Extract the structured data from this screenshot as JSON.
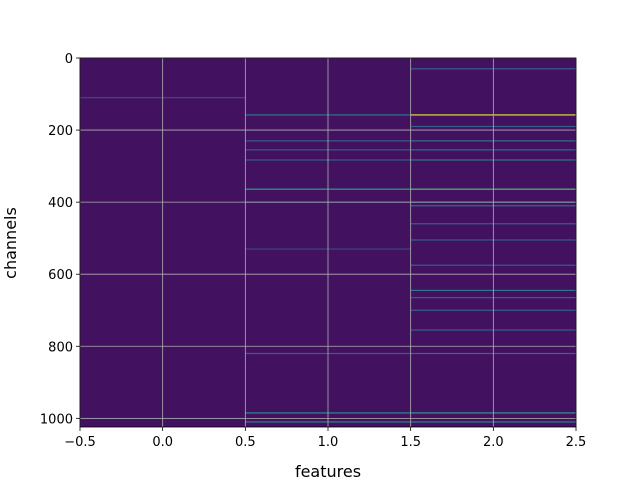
{
  "chart_data": {
    "type": "heatmap",
    "title": "",
    "xlabel": "features",
    "ylabel": "channels",
    "xlim": [
      -0.5,
      2.5
    ],
    "ylim": [
      1024,
      0
    ],
    "y_inverted": true,
    "grid": true,
    "colormap": "viridis",
    "x_ticks": [
      -0.5,
      0.0,
      0.5,
      1.0,
      1.5,
      2.0,
      2.5
    ],
    "x_tick_labels": [
      "−0.5",
      "0.0",
      "0.5",
      "1.0",
      "1.5",
      "2.0",
      "2.5"
    ],
    "y_ticks": [
      0,
      200,
      400,
      600,
      800,
      1000
    ],
    "y_tick_labels": [
      "0",
      "200",
      "400",
      "600",
      "800",
      "1000"
    ],
    "columns": [
      0,
      1,
      2
    ],
    "rows": 1024,
    "background_value": 0.05,
    "highlights": [
      {
        "feature": 0,
        "channel": 110,
        "value": 0.22
      },
      {
        "feature": 0,
        "channel": 1000,
        "value": 0.18
      },
      {
        "feature": 1,
        "channel": 158,
        "value": 0.4
      },
      {
        "feature": 1,
        "channel": 230,
        "value": 0.3
      },
      {
        "feature": 1,
        "channel": 255,
        "value": 0.28
      },
      {
        "feature": 1,
        "channel": 283,
        "value": 0.3
      },
      {
        "feature": 1,
        "channel": 364,
        "value": 0.55
      },
      {
        "feature": 1,
        "channel": 400,
        "value": 0.3
      },
      {
        "feature": 1,
        "channel": 530,
        "value": 0.2
      },
      {
        "feature": 1,
        "channel": 820,
        "value": 0.3
      },
      {
        "feature": 1,
        "channel": 985,
        "value": 0.5
      },
      {
        "feature": 1,
        "channel": 1010,
        "value": 0.45
      },
      {
        "feature": 2,
        "channel": 30,
        "value": 0.3
      },
      {
        "feature": 2,
        "channel": 158,
        "value": 0.95
      },
      {
        "feature": 2,
        "channel": 190,
        "value": 0.3
      },
      {
        "feature": 2,
        "channel": 230,
        "value": 0.4
      },
      {
        "feature": 2,
        "channel": 255,
        "value": 0.35
      },
      {
        "feature": 2,
        "channel": 283,
        "value": 0.4
      },
      {
        "feature": 2,
        "channel": 364,
        "value": 0.7
      },
      {
        "feature": 2,
        "channel": 400,
        "value": 0.4
      },
      {
        "feature": 2,
        "channel": 410,
        "value": 0.35
      },
      {
        "feature": 2,
        "channel": 460,
        "value": 0.3
      },
      {
        "feature": 2,
        "channel": 505,
        "value": 0.3
      },
      {
        "feature": 2,
        "channel": 575,
        "value": 0.3
      },
      {
        "feature": 2,
        "channel": 645,
        "value": 0.4
      },
      {
        "feature": 2,
        "channel": 665,
        "value": 0.3
      },
      {
        "feature": 2,
        "channel": 700,
        "value": 0.3
      },
      {
        "feature": 2,
        "channel": 755,
        "value": 0.3
      },
      {
        "feature": 2,
        "channel": 820,
        "value": 0.35
      },
      {
        "feature": 2,
        "channel": 985,
        "value": 0.55
      },
      {
        "feature": 2,
        "channel": 1010,
        "value": 0.45
      }
    ]
  }
}
